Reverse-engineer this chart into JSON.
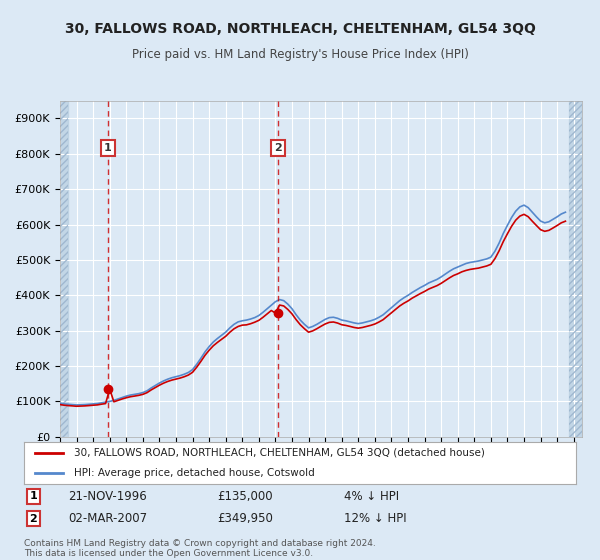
{
  "title": "30, FALLOWS ROAD, NORTHLEACH, CHELTENHAM, GL54 3QQ",
  "subtitle": "Price paid vs. HM Land Registry's House Price Index (HPI)",
  "background_color": "#dce9f5",
  "plot_bg_color": "#dce9f5",
  "hatch_color": "#c0d0e8",
  "grid_color": "#ffffff",
  "ylim": [
    0,
    950000
  ],
  "yticks": [
    0,
    100000,
    200000,
    300000,
    400000,
    500000,
    600000,
    700000,
    800000,
    900000
  ],
  "ytick_labels": [
    "£0",
    "£100K",
    "£200K",
    "£300K",
    "£400K",
    "£500K",
    "£600K",
    "£700K",
    "£800K",
    "£900K"
  ],
  "xlim_start": 1994.0,
  "xlim_end": 2025.5,
  "xticks": [
    1994,
    1995,
    1996,
    1997,
    1998,
    1999,
    2000,
    2001,
    2002,
    2003,
    2004,
    2005,
    2006,
    2007,
    2008,
    2009,
    2010,
    2011,
    2012,
    2013,
    2014,
    2015,
    2016,
    2017,
    2018,
    2019,
    2020,
    2021,
    2022,
    2023,
    2024,
    2025
  ],
  "red_line_color": "#cc0000",
  "blue_line_color": "#5588cc",
  "marker_color": "#cc0000",
  "sale1_x": 1996.9,
  "sale1_y": 135000,
  "sale1_label": "1",
  "sale1_date": "21-NOV-1996",
  "sale1_price": "£135,000",
  "sale1_hpi": "4% ↓ HPI",
  "sale2_x": 2007.17,
  "sale2_y": 349950,
  "sale2_label": "2",
  "sale2_date": "02-MAR-2007",
  "sale2_price": "£349,950",
  "sale2_hpi": "12% ↓ HPI",
  "legend_entry1": "30, FALLOWS ROAD, NORTHLEACH, CHELTENHAM, GL54 3QQ (detached house)",
  "legend_entry2": "HPI: Average price, detached house, Cotswold",
  "footer": "Contains HM Land Registry data © Crown copyright and database right 2024.\nThis data is licensed under the Open Government Licence v3.0.",
  "hpi_data": {
    "years": [
      1994.0,
      1994.25,
      1994.5,
      1994.75,
      1995.0,
      1995.25,
      1995.5,
      1995.75,
      1996.0,
      1996.25,
      1996.5,
      1996.75,
      1997.0,
      1997.25,
      1997.5,
      1997.75,
      1998.0,
      1998.25,
      1998.5,
      1998.75,
      1999.0,
      1999.25,
      1999.5,
      1999.75,
      2000.0,
      2000.25,
      2000.5,
      2000.75,
      2001.0,
      2001.25,
      2001.5,
      2001.75,
      2002.0,
      2002.25,
      2002.5,
      2002.75,
      2003.0,
      2003.25,
      2003.5,
      2003.75,
      2004.0,
      2004.25,
      2004.5,
      2004.75,
      2005.0,
      2005.25,
      2005.5,
      2005.75,
      2006.0,
      2006.25,
      2006.5,
      2006.75,
      2007.0,
      2007.25,
      2007.5,
      2007.75,
      2008.0,
      2008.25,
      2008.5,
      2008.75,
      2009.0,
      2009.25,
      2009.5,
      2009.75,
      2010.0,
      2010.25,
      2010.5,
      2010.75,
      2011.0,
      2011.25,
      2011.5,
      2011.75,
      2012.0,
      2012.25,
      2012.5,
      2012.75,
      2013.0,
      2013.25,
      2013.5,
      2013.75,
      2014.0,
      2014.25,
      2014.5,
      2014.75,
      2015.0,
      2015.25,
      2015.5,
      2015.75,
      2016.0,
      2016.25,
      2016.5,
      2016.75,
      2017.0,
      2017.25,
      2017.5,
      2017.75,
      2018.0,
      2018.25,
      2018.5,
      2018.75,
      2019.0,
      2019.25,
      2019.5,
      2019.75,
      2020.0,
      2020.25,
      2020.5,
      2020.75,
      2021.0,
      2021.25,
      2021.5,
      2021.75,
      2022.0,
      2022.25,
      2022.5,
      2022.75,
      2023.0,
      2023.25,
      2023.5,
      2023.75,
      2024.0,
      2024.25,
      2024.5
    ],
    "values": [
      95000,
      93000,
      92000,
      91000,
      90000,
      90500,
      91000,
      92000,
      93000,
      94000,
      96000,
      98000,
      100000,
      103000,
      107000,
      111000,
      115000,
      118000,
      120000,
      122000,
      125000,
      130000,
      138000,
      145000,
      152000,
      158000,
      163000,
      167000,
      170000,
      173000,
      177000,
      182000,
      190000,
      205000,
      222000,
      240000,
      255000,
      268000,
      278000,
      287000,
      296000,
      308000,
      318000,
      325000,
      328000,
      330000,
      333000,
      337000,
      343000,
      352000,
      362000,
      372000,
      382000,
      388000,
      385000,
      375000,
      362000,
      345000,
      330000,
      318000,
      308000,
      312000,
      318000,
      325000,
      332000,
      337000,
      338000,
      335000,
      330000,
      328000,
      325000,
      322000,
      320000,
      322000,
      325000,
      328000,
      332000,
      338000,
      345000,
      355000,
      365000,
      375000,
      385000,
      393000,
      400000,
      408000,
      415000,
      422000,
      428000,
      435000,
      440000,
      445000,
      452000,
      460000,
      468000,
      475000,
      480000,
      485000,
      490000,
      493000,
      495000,
      497000,
      500000,
      503000,
      508000,
      525000,
      548000,
      575000,
      598000,
      620000,
      638000,
      650000,
      655000,
      648000,
      635000,
      622000,
      610000,
      605000,
      608000,
      615000,
      622000,
      630000,
      635000
    ]
  },
  "red_data": {
    "years": [
      1994.0,
      1994.25,
      1994.5,
      1994.75,
      1995.0,
      1995.25,
      1995.5,
      1995.75,
      1996.0,
      1996.25,
      1996.5,
      1996.75,
      1997.0,
      1997.25,
      1997.5,
      1997.75,
      1998.0,
      1998.25,
      1998.5,
      1998.75,
      1999.0,
      1999.25,
      1999.5,
      1999.75,
      2000.0,
      2000.25,
      2000.5,
      2000.75,
      2001.0,
      2001.25,
      2001.5,
      2001.75,
      2002.0,
      2002.25,
      2002.5,
      2002.75,
      2003.0,
      2003.25,
      2003.5,
      2003.75,
      2004.0,
      2004.25,
      2004.5,
      2004.75,
      2005.0,
      2005.25,
      2005.5,
      2005.75,
      2006.0,
      2006.25,
      2006.5,
      2006.75,
      2007.0,
      2007.25,
      2007.5,
      2007.75,
      2008.0,
      2008.25,
      2008.5,
      2008.75,
      2009.0,
      2009.25,
      2009.5,
      2009.75,
      2010.0,
      2010.25,
      2010.5,
      2010.75,
      2011.0,
      2011.25,
      2011.5,
      2011.75,
      2012.0,
      2012.25,
      2012.5,
      2012.75,
      2013.0,
      2013.25,
      2013.5,
      2013.75,
      2014.0,
      2014.25,
      2014.5,
      2014.75,
      2015.0,
      2015.25,
      2015.5,
      2015.75,
      2016.0,
      2016.25,
      2016.5,
      2016.75,
      2017.0,
      2017.25,
      2017.5,
      2017.75,
      2018.0,
      2018.25,
      2018.5,
      2018.75,
      2019.0,
      2019.25,
      2019.5,
      2019.75,
      2020.0,
      2020.25,
      2020.5,
      2020.75,
      2021.0,
      2021.25,
      2021.5,
      2021.75,
      2022.0,
      2022.25,
      2022.5,
      2022.75,
      2023.0,
      2023.25,
      2023.5,
      2023.75,
      2024.0,
      2024.25,
      2024.5
    ],
    "values": [
      91200,
      89300,
      88200,
      87400,
      86400,
      86900,
      87400,
      88300,
      89300,
      90200,
      92200,
      94000,
      135000,
      99000,
      103000,
      107000,
      110400,
      113300,
      115200,
      117200,
      120000,
      124800,
      132500,
      139200,
      145900,
      151700,
      156500,
      160300,
      163200,
      166100,
      169900,
      174700,
      182400,
      196800,
      213100,
      230400,
      244800,
      257300,
      266900,
      275600,
      284200,
      295700,
      305300,
      312000,
      315700,
      316500,
      319700,
      324000,
      329300,
      337900,
      347500,
      357100,
      349950,
      372500,
      370000,
      360000,
      347500,
      331200,
      316900,
      305600,
      295700,
      299500,
      305600,
      312500,
      319000,
      323600,
      324600,
      321600,
      316900,
      314900,
      312100,
      309100,
      307200,
      309100,
      312100,
      315100,
      318900,
      324600,
      331200,
      341000,
      350600,
      360300,
      369900,
      377600,
      384100,
      392000,
      398500,
      405100,
      411000,
      417700,
      422600,
      427400,
      433900,
      441600,
      449300,
      456100,
      460800,
      466500,
      470400,
      473300,
      475200,
      476900,
      480000,
      483000,
      487700,
      504000,
      526100,
      552000,
      574100,
      595200,
      612500,
      624000,
      629000,
      622400,
      609600,
      597400,
      585600,
      581000,
      583700,
      590400,
      597400,
      605000,
      609600
    ]
  }
}
